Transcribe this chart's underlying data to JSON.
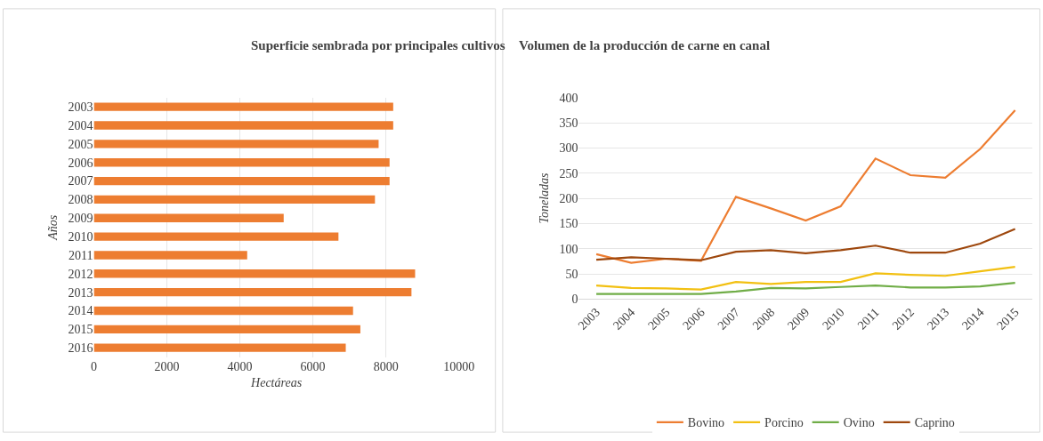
{
  "chart_data": [
    {
      "type": "bar",
      "orientation": "horizontal",
      "title": "Superficie sembrada por principales cultivos",
      "xlabel": "Hectáreas",
      "ylabel": "Años",
      "categories": [
        "2003",
        "2004",
        "2005",
        "2006",
        "2007",
        "2008",
        "2009",
        "2010",
        "2011",
        "2012",
        "2013",
        "2014",
        "2015",
        "2016"
      ],
      "values": [
        8200,
        8200,
        7800,
        8100,
        8100,
        7700,
        5200,
        6700,
        4200,
        8800,
        8700,
        7100,
        7300,
        6900
      ],
      "color": "#ed7d31",
      "xlim": [
        0,
        10000
      ],
      "xticks": [
        0,
        2000,
        4000,
        6000,
        8000,
        10000
      ],
      "grid": "x",
      "legend": false
    },
    {
      "type": "line",
      "title": "Volumen de la producción de carne en canal",
      "ylabel": "Toneladas",
      "categories": [
        "2003",
        "2004",
        "2005",
        "2006",
        "2007",
        "2008",
        "2009",
        "2010",
        "2011",
        "2012",
        "2013",
        "2014",
        "2015"
      ],
      "series": [
        {
          "name": "Bovino",
          "color": "#ed7d31",
          "values": [
            89,
            72,
            80,
            76,
            203,
            180,
            156,
            184,
            279,
            246,
            241,
            298,
            375
          ]
        },
        {
          "name": "Porcino",
          "color": "#f2c012",
          "values": [
            27,
            22,
            21,
            19,
            34,
            30,
            34,
            34,
            51,
            48,
            46,
            55,
            64
          ]
        },
        {
          "name": "Ovino",
          "color": "#70ad47",
          "values": [
            10,
            10,
            10,
            10,
            15,
            22,
            21,
            24,
            27,
            23,
            23,
            25,
            32
          ]
        },
        {
          "name": "Caprino",
          "color": "#9e480e",
          "values": [
            78,
            83,
            80,
            77,
            94,
            97,
            91,
            97,
            106,
            92,
            92,
            110,
            139
          ]
        }
      ],
      "ylim": [
        0,
        400
      ],
      "yticks": [
        0,
        50,
        100,
        150,
        200,
        250,
        300,
        350,
        400
      ],
      "grid": "y",
      "legend": "bottom",
      "marker": "none",
      "line_style": "solid"
    }
  ]
}
